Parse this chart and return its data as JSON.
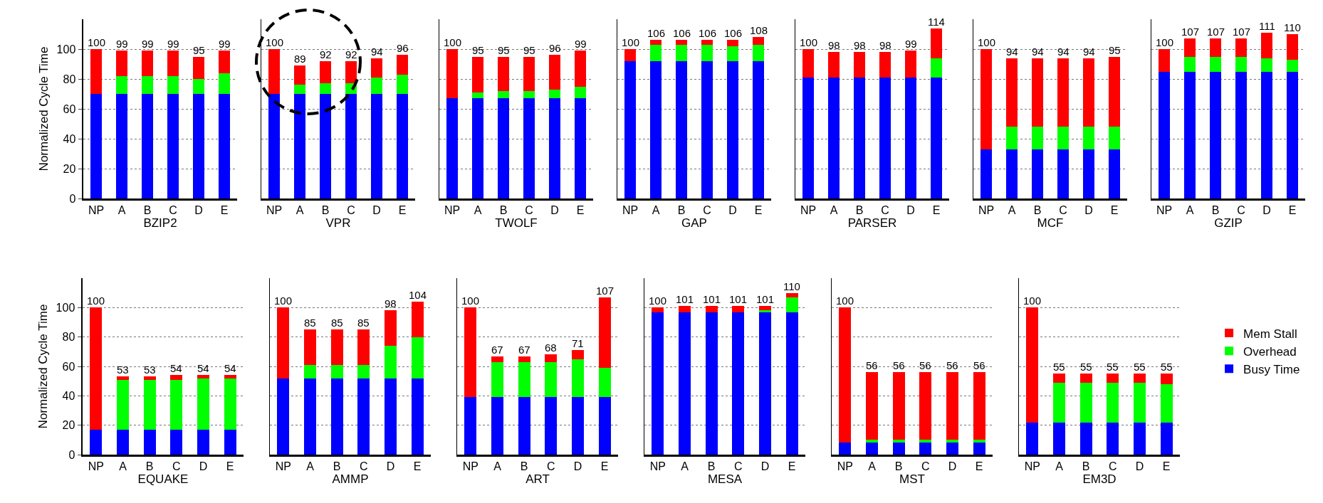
{
  "chart_data": [
    {
      "type": "bar",
      "stacked": true,
      "categories": [
        "NP",
        "A",
        "B",
        "C",
        "D",
        "E"
      ],
      "xlabel": "BZIP2",
      "ylabel": "Normalized Cycle Time",
      "ylim": [
        0,
        120
      ],
      "yticks": [
        0,
        20,
        40,
        60,
        80,
        100
      ],
      "grid": "y",
      "legend": false,
      "series": [
        {
          "color": "#0000ff",
          "values": [
            70,
            70,
            70,
            70,
            70,
            70
          ]
        },
        {
          "color": "#00ff00",
          "values": [
            0,
            12,
            12,
            12,
            10,
            14
          ]
        },
        {
          "color": "#ff0000",
          "values": [
            30,
            17,
            17,
            17,
            15,
            15
          ]
        }
      ],
      "totals": [
        "100",
        "99",
        "99",
        "99",
        "95",
        "99"
      ]
    },
    {
      "type": "bar",
      "stacked": true,
      "categories": [
        "NP",
        "A",
        "B",
        "C",
        "D",
        "E"
      ],
      "xlabel": "VPR",
      "ylim": [
        0,
        120
      ],
      "yticks": [
        0,
        20,
        40,
        60,
        80,
        100
      ],
      "grid": "y",
      "legend": false,
      "tick_labels": "x",
      "series": [
        {
          "color": "#0000ff",
          "values": [
            70,
            70,
            70,
            70,
            70,
            70
          ]
        },
        {
          "color": "#00ff00",
          "values": [
            0,
            6,
            7,
            7,
            11,
            13
          ]
        },
        {
          "color": "#ff0000",
          "values": [
            30,
            13,
            15,
            15,
            13,
            13
          ]
        }
      ],
      "totals": [
        "100",
        "89",
        "92",
        "92",
        "94",
        "96"
      ]
    },
    {
      "type": "bar",
      "stacked": true,
      "categories": [
        "NP",
        "A",
        "B",
        "C",
        "D",
        "E"
      ],
      "xlabel": "TWOLF",
      "ylim": [
        0,
        120
      ],
      "yticks": [
        0,
        20,
        40,
        60,
        80,
        100
      ],
      "grid": "y",
      "legend": false,
      "tick_labels": "x",
      "series": [
        {
          "color": "#0000ff",
          "values": [
            67,
            67,
            67,
            67,
            67,
            67
          ]
        },
        {
          "color": "#00ff00",
          "values": [
            0,
            4,
            5,
            5,
            6,
            8
          ]
        },
        {
          "color": "#ff0000",
          "values": [
            33,
            24,
            23,
            23,
            23,
            24
          ]
        }
      ],
      "totals": [
        "100",
        "95",
        "95",
        "95",
        "96",
        "99"
      ]
    },
    {
      "type": "bar",
      "stacked": true,
      "categories": [
        "NP",
        "A",
        "B",
        "C",
        "D",
        "E"
      ],
      "xlabel": "GAP",
      "ylim": [
        0,
        120
      ],
      "yticks": [
        0,
        20,
        40,
        60,
        80,
        100
      ],
      "grid": "y",
      "legend": false,
      "tick_labels": "x",
      "series": [
        {
          "color": "#0000ff",
          "values": [
            92,
            92,
            92,
            92,
            92,
            92
          ]
        },
        {
          "color": "#00ff00",
          "values": [
            0,
            11,
            11,
            11,
            10,
            11
          ]
        },
        {
          "color": "#ff0000",
          "values": [
            8,
            3,
            3,
            3,
            4,
            5
          ]
        }
      ],
      "totals": [
        "100",
        "106",
        "106",
        "106",
        "106",
        "108"
      ]
    },
    {
      "type": "bar",
      "stacked": true,
      "categories": [
        "NP",
        "A",
        "B",
        "C",
        "D",
        "E"
      ],
      "xlabel": "PARSER",
      "ylim": [
        0,
        120
      ],
      "yticks": [
        0,
        20,
        40,
        60,
        80,
        100
      ],
      "grid": "y",
      "legend": false,
      "tick_labels": "x",
      "series": [
        {
          "color": "#0000ff",
          "values": [
            81,
            81,
            81,
            81,
            81,
            81
          ]
        },
        {
          "color": "#00ff00",
          "values": [
            0,
            0,
            0,
            0,
            0,
            13
          ]
        },
        {
          "color": "#ff0000",
          "values": [
            19,
            17,
            17,
            17,
            18,
            20
          ]
        }
      ],
      "totals": [
        "100",
        "98",
        "98",
        "98",
        "99",
        "114"
      ]
    },
    {
      "type": "bar",
      "stacked": true,
      "categories": [
        "NP",
        "A",
        "B",
        "C",
        "D",
        "E"
      ],
      "xlabel": "MCF",
      "ylim": [
        0,
        120
      ],
      "yticks": [
        0,
        20,
        40,
        60,
        80,
        100
      ],
      "grid": "y",
      "legend": false,
      "tick_labels": "x",
      "series": [
        {
          "color": "#0000ff",
          "values": [
            33,
            33,
            33,
            33,
            33,
            33
          ]
        },
        {
          "color": "#00ff00",
          "values": [
            0,
            15,
            15,
            15,
            15,
            15
          ]
        },
        {
          "color": "#ff0000",
          "values": [
            67,
            46,
            46,
            46,
            46,
            47
          ]
        }
      ],
      "totals": [
        "100",
        "94",
        "94",
        "94",
        "94",
        "95"
      ]
    },
    {
      "type": "bar",
      "stacked": true,
      "categories": [
        "NP",
        "A",
        "B",
        "C",
        "D",
        "E"
      ],
      "xlabel": "GZIP",
      "ylim": [
        0,
        120
      ],
      "yticks": [
        0,
        20,
        40,
        60,
        80,
        100
      ],
      "grid": "y",
      "legend": false,
      "tick_labels": "x",
      "series": [
        {
          "color": "#0000ff",
          "values": [
            85,
            85,
            85,
            85,
            85,
            85
          ]
        },
        {
          "color": "#00ff00",
          "values": [
            0,
            10,
            10,
            10,
            9,
            8
          ]
        },
        {
          "color": "#ff0000",
          "values": [
            15,
            12,
            12,
            12,
            17,
            17
          ]
        }
      ],
      "totals": [
        "100",
        "107",
        "107",
        "107",
        "111",
        "110"
      ]
    },
    {
      "type": "bar",
      "stacked": true,
      "categories": [
        "NP",
        "A",
        "B",
        "C",
        "D",
        "E"
      ],
      "xlabel": "EQUAKE",
      "ylabel": "Normalized Cycle Time",
      "ylim": [
        0,
        120
      ],
      "yticks": [
        0,
        20,
        40,
        60,
        80,
        100
      ],
      "grid": "y",
      "legend": false,
      "series": [
        {
          "color": "#0000ff",
          "values": [
            17,
            17,
            17,
            17,
            17,
            17
          ]
        },
        {
          "color": "#00ff00",
          "values": [
            0,
            34,
            34,
            34,
            35,
            35
          ]
        },
        {
          "color": "#ff0000",
          "values": [
            83,
            2,
            2,
            3,
            2,
            2
          ]
        }
      ],
      "totals": [
        "100",
        "53",
        "53",
        "54",
        "54",
        "54"
      ]
    },
    {
      "type": "bar",
      "stacked": true,
      "categories": [
        "NP",
        "A",
        "B",
        "C",
        "D",
        "E"
      ],
      "xlabel": "AMMP",
      "ylim": [
        0,
        120
      ],
      "yticks": [
        0,
        20,
        40,
        60,
        80,
        100
      ],
      "grid": "y",
      "legend": false,
      "tick_labels": "x",
      "series": [
        {
          "color": "#0000ff",
          "values": [
            52,
            52,
            52,
            52,
            52,
            52
          ]
        },
        {
          "color": "#00ff00",
          "values": [
            0,
            9,
            9,
            9,
            22,
            28
          ]
        },
        {
          "color": "#ff0000",
          "values": [
            48,
            24,
            24,
            24,
            24,
            24
          ]
        }
      ],
      "totals": [
        "100",
        "85",
        "85",
        "85",
        "98",
        "104"
      ]
    },
    {
      "type": "bar",
      "stacked": true,
      "categories": [
        "NP",
        "A",
        "B",
        "C",
        "D",
        "E"
      ],
      "xlabel": "ART",
      "ylim": [
        0,
        120
      ],
      "yticks": [
        0,
        20,
        40,
        60,
        80,
        100
      ],
      "grid": "y",
      "legend": false,
      "tick_labels": "x",
      "series": [
        {
          "color": "#0000ff",
          "values": [
            39,
            39,
            39,
            39,
            39,
            39
          ]
        },
        {
          "color": "#00ff00",
          "values": [
            0,
            24,
            24,
            24,
            26,
            20
          ]
        },
        {
          "color": "#ff0000",
          "values": [
            61,
            4,
            4,
            5,
            6,
            48
          ]
        }
      ],
      "totals": [
        "100",
        "67",
        "67",
        "68",
        "71",
        "107"
      ]
    },
    {
      "type": "bar",
      "stacked": true,
      "categories": [
        "NP",
        "A",
        "B",
        "C",
        "D",
        "E"
      ],
      "xlabel": "MESA",
      "ylim": [
        0,
        120
      ],
      "yticks": [
        0,
        20,
        40,
        60,
        80,
        100
      ],
      "grid": "y",
      "legend": false,
      "tick_labels": "x",
      "series": [
        {
          "color": "#0000ff",
          "values": [
            97,
            97,
            97,
            97,
            97,
            97
          ]
        },
        {
          "color": "#00ff00",
          "values": [
            0,
            0,
            0,
            0,
            1,
            10
          ]
        },
        {
          "color": "#ff0000",
          "values": [
            3,
            4,
            4,
            4,
            3,
            3
          ]
        }
      ],
      "totals": [
        "100",
        "101",
        "101",
        "101",
        "101",
        "110"
      ]
    },
    {
      "type": "bar",
      "stacked": true,
      "categories": [
        "NP",
        "A",
        "B",
        "C",
        "D",
        "E"
      ],
      "xlabel": "MST",
      "ylim": [
        0,
        120
      ],
      "yticks": [
        0,
        20,
        40,
        60,
        80,
        100
      ],
      "grid": "y",
      "legend": false,
      "tick_labels": "x",
      "series": [
        {
          "color": "#0000ff",
          "values": [
            8,
            8,
            8,
            8,
            8,
            8
          ]
        },
        {
          "color": "#00ff00",
          "values": [
            0,
            2,
            2,
            2,
            2,
            2
          ]
        },
        {
          "color": "#ff0000",
          "values": [
            92,
            46,
            46,
            46,
            46,
            46
          ]
        }
      ],
      "totals": [
        "100",
        "56",
        "56",
        "56",
        "56",
        "56"
      ]
    },
    {
      "type": "bar",
      "stacked": true,
      "categories": [
        "NP",
        "A",
        "B",
        "C",
        "D",
        "E"
      ],
      "xlabel": "EM3D",
      "ylim": [
        0,
        120
      ],
      "yticks": [
        0,
        20,
        40,
        60,
        80,
        100
      ],
      "grid": "y",
      "legend": "right",
      "tick_labels": "x",
      "series": [
        {
          "name": "Busy Time",
          "color": "#0000ff",
          "values": [
            22,
            22,
            22,
            22,
            22,
            22
          ]
        },
        {
          "name": "Overhead",
          "color": "#00ff00",
          "values": [
            0,
            27,
            27,
            27,
            27,
            26
          ]
        },
        {
          "name": "Mem Stall",
          "color": "#ff0000",
          "values": [
            78,
            6,
            6,
            6,
            6,
            7
          ]
        }
      ],
      "totals": [
        "100",
        "55",
        "55",
        "55",
        "55",
        "55"
      ]
    }
  ]
}
